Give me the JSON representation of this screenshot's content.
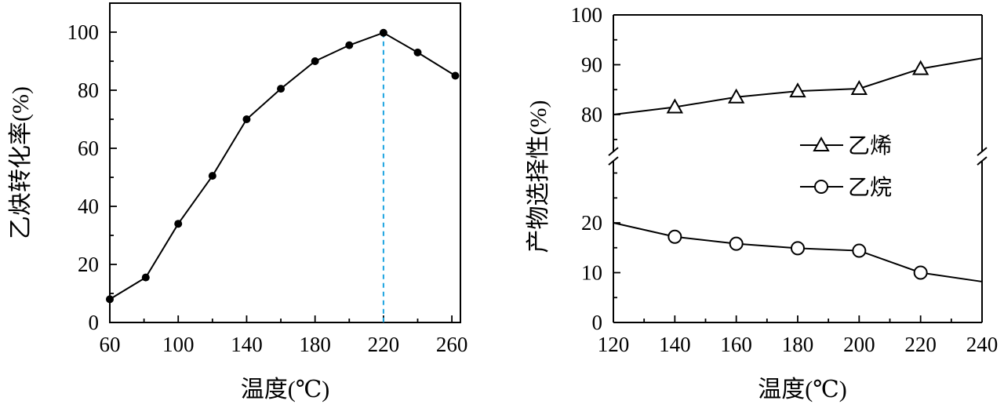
{
  "chart_data": [
    {
      "type": "line",
      "xlabel": "温度(℃)",
      "ylabel": "乙炔转化率(%)",
      "xlim": [
        60,
        265
      ],
      "ylim": [
        0,
        110
      ],
      "xticks": [
        60,
        100,
        140,
        180,
        220,
        260
      ],
      "yticks": [
        0,
        20,
        40,
        60,
        80,
        100
      ],
      "x": [
        60,
        81,
        100,
        120,
        140,
        160,
        180,
        200,
        220,
        240,
        262
      ],
      "series": [
        {
          "values": [
            8,
            15.5,
            34,
            50.5,
            70,
            80.5,
            90,
            95.5,
            99.8,
            93,
            85
          ],
          "marker": "filled-circle"
        }
      ],
      "reference_line": {
        "x": 220,
        "style": "dashed",
        "color": "#1aa3e0"
      }
    },
    {
      "type": "line",
      "xlabel": "温度(℃)",
      "ylabel": "产物选择性(%)",
      "xlim": [
        120,
        240
      ],
      "ylim": [
        0,
        100
      ],
      "broken_y_axis": {
        "lower": [
          0,
          30
        ],
        "upper": [
          75,
          100
        ]
      },
      "xticks": [
        120,
        140,
        160,
        180,
        200,
        220,
        240
      ],
      "yticks": [
        0,
        10,
        20,
        80,
        90,
        100
      ],
      "legend_position": "center-right",
      "series": [
        {
          "name": "乙烯",
          "marker": "open-triangle",
          "x": [
            120,
            140,
            160,
            180,
            200,
            220,
            240
          ],
          "values": [
            80,
            81.5,
            83.5,
            84.7,
            85.2,
            89.2,
            91.3
          ],
          "marker_x": [
            140,
            160,
            180,
            200,
            220
          ]
        },
        {
          "name": "乙烷",
          "marker": "open-circle",
          "x": [
            120,
            140,
            160,
            180,
            200,
            220,
            240
          ],
          "values": [
            20,
            17.2,
            15.8,
            14.9,
            14.4,
            10,
            8.2
          ],
          "marker_x": [
            140,
            160,
            180,
            200,
            220
          ]
        }
      ]
    }
  ]
}
